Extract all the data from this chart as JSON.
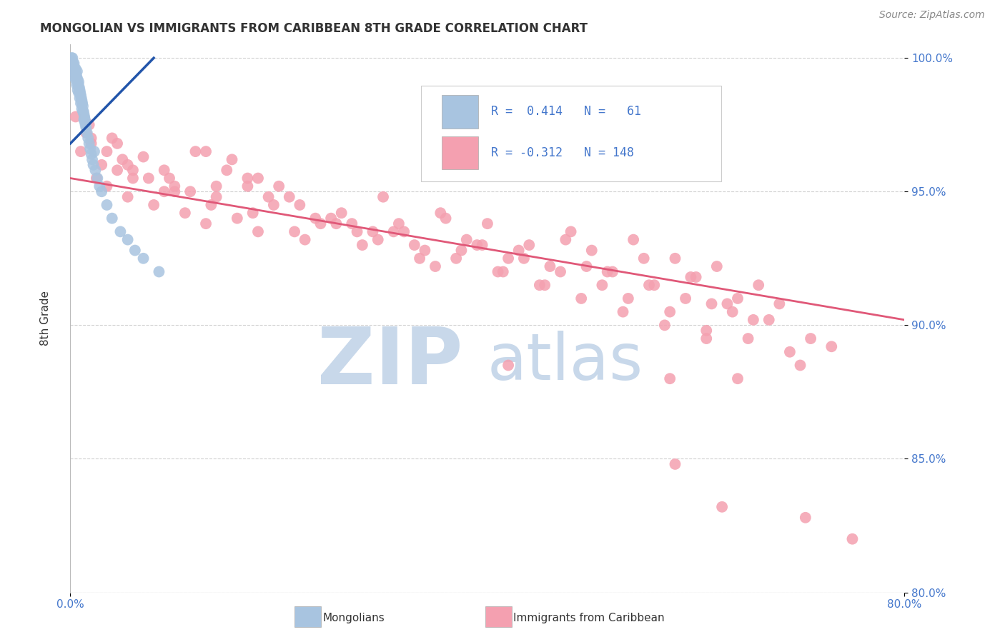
{
  "title": "MONGOLIAN VS IMMIGRANTS FROM CARIBBEAN 8TH GRADE CORRELATION CHART",
  "source_text": "Source: ZipAtlas.com",
  "ylabel": "8th Grade",
  "x_min": 0.0,
  "x_max": 80.0,
  "y_min": 80.0,
  "y_max": 100.5,
  "blue_color": "#a8c4e0",
  "pink_color": "#f4a0b0",
  "blue_line_color": "#2255aa",
  "pink_line_color": "#e05878",
  "grid_color": "#cccccc",
  "watermark_color": "#c8d8ea",
  "blue_scatter_x": [
    0.1,
    0.15,
    0.2,
    0.25,
    0.3,
    0.35,
    0.4,
    0.45,
    0.5,
    0.55,
    0.6,
    0.65,
    0.7,
    0.75,
    0.8,
    0.85,
    0.9,
    0.95,
    1.0,
    1.05,
    1.1,
    1.15,
    1.2,
    1.25,
    1.3,
    1.35,
    1.4,
    1.45,
    1.5,
    1.6,
    1.7,
    1.8,
    1.9,
    2.0,
    2.1,
    2.2,
    2.4,
    2.6,
    2.8,
    3.0,
    3.5,
    4.0,
    4.8,
    5.5,
    6.2,
    7.0,
    8.5,
    0.3,
    0.5,
    0.7,
    0.9,
    1.1,
    1.3,
    0.2,
    0.4,
    0.6,
    0.8,
    1.0,
    1.2,
    1.4,
    2.3
  ],
  "blue_scatter_y": [
    100.0,
    99.9,
    100.0,
    99.8,
    99.7,
    99.8,
    99.6,
    99.5,
    99.6,
    99.4,
    99.3,
    99.5,
    99.2,
    99.0,
    99.1,
    98.9,
    98.8,
    98.7,
    98.6,
    98.5,
    98.4,
    98.3,
    98.2,
    98.0,
    97.9,
    97.8,
    97.7,
    97.5,
    97.4,
    97.2,
    97.0,
    96.8,
    96.6,
    96.4,
    96.2,
    96.0,
    95.8,
    95.5,
    95.2,
    95.0,
    94.5,
    94.0,
    93.5,
    93.2,
    92.8,
    92.5,
    92.0,
    99.5,
    99.2,
    98.8,
    98.5,
    98.1,
    97.7,
    99.7,
    99.3,
    99.0,
    98.7,
    98.3,
    98.0,
    97.6,
    96.5
  ],
  "pink_scatter_x": [
    0.5,
    1.0,
    1.5,
    2.0,
    2.5,
    3.0,
    3.5,
    4.0,
    4.5,
    5.0,
    5.5,
    6.0,
    7.0,
    8.0,
    9.0,
    10.0,
    11.0,
    12.0,
    13.0,
    14.0,
    15.0,
    16.0,
    17.0,
    18.0,
    19.0,
    20.0,
    22.0,
    24.0,
    26.0,
    28.0,
    30.0,
    32.0,
    34.0,
    36.0,
    38.0,
    40.0,
    42.0,
    44.0,
    46.0,
    48.0,
    50.0,
    52.0,
    54.0,
    56.0,
    58.0,
    60.0,
    62.0,
    64.0,
    66.0,
    68.0,
    3.5,
    7.5,
    11.5,
    15.5,
    19.5,
    23.5,
    27.5,
    31.5,
    35.5,
    39.5,
    43.5,
    47.5,
    51.5,
    55.5,
    59.5,
    63.5,
    2.0,
    6.0,
    10.0,
    14.0,
    18.0,
    22.5,
    27.0,
    31.0,
    35.0,
    39.0,
    43.0,
    47.0,
    51.0,
    55.0,
    59.0,
    63.0,
    67.0,
    71.0,
    4.5,
    9.0,
    13.5,
    17.5,
    21.5,
    25.5,
    29.5,
    33.5,
    37.5,
    41.5,
    45.5,
    49.5,
    53.5,
    57.5,
    61.5,
    65.5,
    1.8,
    5.5,
    9.5,
    13.0,
    17.0,
    21.0,
    25.0,
    29.0,
    33.0,
    37.0,
    41.0,
    45.0,
    49.0,
    53.0,
    57.0,
    61.0,
    65.0,
    69.0,
    42.0,
    57.5,
    61.0,
    64.0,
    70.0,
    73.0,
    58.0,
    62.5,
    70.5,
    75.0
  ],
  "pink_scatter_y": [
    97.8,
    96.5,
    97.2,
    96.8,
    95.5,
    96.0,
    95.2,
    97.0,
    95.8,
    96.2,
    94.8,
    95.5,
    96.3,
    94.5,
    95.8,
    95.0,
    94.2,
    96.5,
    93.8,
    95.2,
    95.8,
    94.0,
    95.5,
    93.5,
    94.8,
    95.2,
    94.5,
    93.8,
    94.2,
    93.0,
    94.8,
    93.5,
    92.8,
    94.0,
    93.2,
    93.8,
    92.5,
    93.0,
    92.2,
    93.5,
    92.8,
    92.0,
    93.2,
    91.5,
    92.5,
    91.8,
    92.2,
    91.0,
    91.5,
    90.8,
    96.5,
    95.5,
    95.0,
    96.2,
    94.5,
    94.0,
    93.5,
    93.8,
    94.2,
    93.0,
    92.5,
    93.2,
    92.0,
    91.5,
    91.8,
    90.5,
    97.0,
    95.8,
    95.2,
    94.8,
    95.5,
    93.2,
    93.8,
    93.5,
    92.2,
    93.0,
    92.8,
    92.0,
    91.5,
    92.5,
    91.0,
    90.8,
    90.2,
    89.5,
    96.8,
    95.0,
    94.5,
    94.2,
    93.5,
    93.8,
    93.2,
    92.5,
    92.8,
    92.0,
    91.5,
    92.2,
    91.0,
    90.5,
    90.8,
    90.2,
    97.5,
    96.0,
    95.5,
    96.5,
    95.2,
    94.8,
    94.0,
    93.5,
    93.0,
    92.5,
    92.0,
    91.5,
    91.0,
    90.5,
    90.0,
    89.8,
    89.5,
    89.0,
    88.5,
    88.0,
    89.5,
    88.0,
    88.5,
    89.2,
    84.8,
    83.2,
    82.8,
    82.0
  ],
  "blue_trendline_x": [
    0.0,
    8.0
  ],
  "blue_trendline_y": [
    96.8,
    100.0
  ],
  "pink_trendline_x": [
    0.0,
    80.0
  ],
  "pink_trendline_y": [
    95.5,
    90.2
  ]
}
